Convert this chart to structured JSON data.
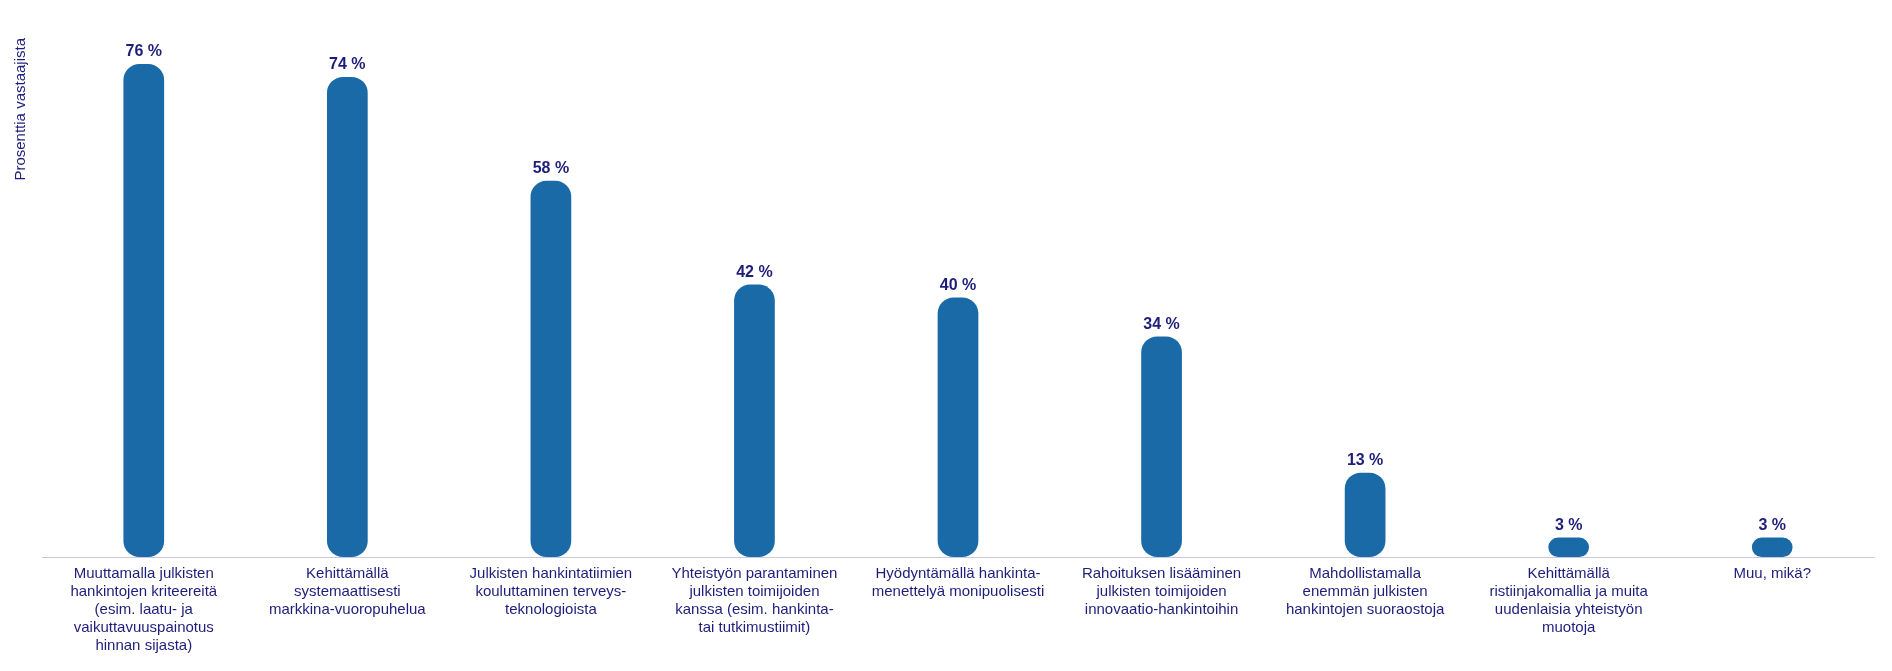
{
  "chart_data": {
    "type": "bar",
    "ylabel": "Prosenttia vastaajista",
    "categories": [
      "Muuttamalla julkisten hankintojen kriteereitä (esim. laatu- ja vaikuttavuuspainotus hinnan sijasta)",
      "Kehittämällä systemaattisesti markkina-vuoropuhelua",
      "Julkisten hankintatiimien kouluttaminen terveys-teknologioista",
      "Yhteistyön parantaminen julkisten toimijoiden kanssa (esim. hankinta- tai tutkimustiimit)",
      "Hyödyntämällä hankinta-menettelyä monipuolisesti",
      "Rahoituksen lisääminen julkisten toimijoiden innovaatio-hankintoihin",
      "Mahdollistamalla enemmän julkisten hankintojen suoraostoja",
      "Kehittämällä ristiinjakomallia ja muita uudenlaisia yhteistyön muotoja",
      "Muu, mikä?"
    ],
    "values": [
      76,
      74,
      58,
      42,
      40,
      34,
      13,
      3,
      3
    ],
    "value_labels": [
      "76 %",
      "74 %",
      "58 %",
      "42 %",
      "40 %",
      "34 %",
      "13 %",
      "3 %",
      "3 %"
    ],
    "color": "#1a6aa8",
    "grid": false,
    "legend": false
  }
}
